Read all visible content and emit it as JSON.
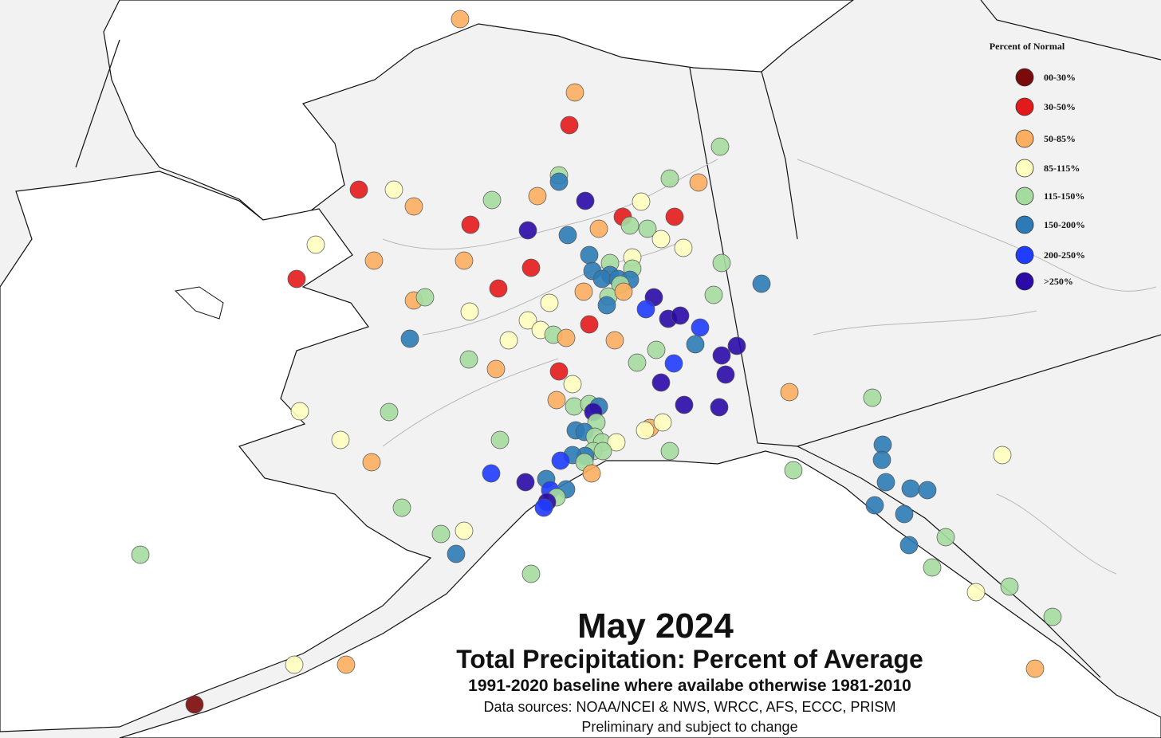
{
  "title": "May 2024",
  "subtitle": "Total Precipitation: Percent of Average",
  "notes": [
    "1991-2020 baseline where availabe otherwise 1981-2010",
    "Data sources: NOAA/NCEI & NWS, WRCC, AFS, ECCC, PRISM",
    "Preliminary and subject to change"
  ],
  "legend": {
    "title": "Percent of Normal",
    "items": [
      {
        "label": "00-30%",
        "color": "#7b0a0a"
      },
      {
        "label": "30-50%",
        "color": "#e31a1c"
      },
      {
        "label": "50-85%",
        "color": "#fdae61"
      },
      {
        "label": "85-115%",
        "color": "#ffffbf"
      },
      {
        "label": "115-150%",
        "color": "#a6dba0"
      },
      {
        "label": "150-200%",
        "color": "#2c7bb6"
      },
      {
        "label": "200-250%",
        "color": "#1f3cff"
      },
      {
        "label": ">250%",
        "color": "#2b0aa8"
      }
    ]
  }
}
